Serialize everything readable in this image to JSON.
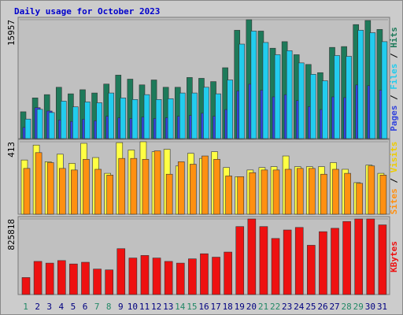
{
  "chart_data": {
    "type": "awstats-daily",
    "title": "Daily usage for October 2023",
    "categories": [
      "1",
      "2",
      "3",
      "4",
      "5",
      "6",
      "7",
      "8",
      "9",
      "10",
      "11",
      "12",
      "13",
      "14",
      "15",
      "16",
      "17",
      "18",
      "19",
      "20",
      "21",
      "22",
      "23",
      "24",
      "25",
      "26",
      "27",
      "28",
      "29",
      "30",
      "31"
    ],
    "weekends": [
      "1",
      "7",
      "8",
      "14",
      "15",
      "21",
      "22",
      "28",
      "29"
    ],
    "weekend_color": "#228866",
    "weekday_color": "#000080",
    "legend_separator": " / ",
    "panels": [
      {
        "ylim": [
          0,
          15957
        ],
        "yticks": [
          15957
        ],
        "series": [
          {
            "name": "Pages",
            "color": "#3344dd",
            "values": [
              1500,
              4150,
              3700,
              2500,
              2300,
              2600,
              2400,
              3000,
              2800,
              2700,
              2900,
              2700,
              2800,
              3000,
              3100,
              3400,
              3000,
              3900,
              6400,
              7300,
              6500,
              5600,
              5900,
              5100,
              4300,
              3900,
              5600,
              5500,
              7200,
              7100,
              6500
            ]
          },
          {
            "name": "Files",
            "color": "#22ccee",
            "values": [
              2620,
              3930,
              3500,
              5030,
              4260,
              4920,
              4810,
              6120,
              5460,
              5250,
              5900,
              5250,
              5360,
              6120,
              6120,
              6890,
              6010,
              7870,
              12680,
              14430,
              12900,
              11260,
              11800,
              10160,
              8630,
              7760,
              11150,
              11040,
              14540,
              14210,
              13010
            ]
          },
          {
            "name": "Hits",
            "color": "#1e7a5a",
            "values": [
              3600,
              5460,
              5900,
              6890,
              6010,
              6560,
              6120,
              7320,
              8520,
              7980,
              7210,
              7870,
              6890,
              6890,
              8200,
              8090,
              7650,
              9510,
              14540,
              15957,
              14430,
              12130,
              13010,
              11260,
              9950,
              8850,
              12240,
              12350,
              15300,
              15850,
              14650
            ]
          }
        ]
      },
      {
        "ylim": [
          0,
          413
        ],
        "yticks": [
          413
        ],
        "series": [
          {
            "name": "Sites",
            "color": "#ff9011",
            "values": [
              261,
              351,
              294,
              261,
              252,
              313,
              256,
              223,
              318,
              318,
              313,
              361,
              228,
              299,
              285,
              332,
              313,
              218,
              214,
              237,
              252,
              252,
              256,
              261,
              261,
              228,
              256,
              233,
              176,
              275,
              223
            ]
          },
          {
            "name": "Visits",
            "color": "#ffff44",
            "values": [
              309,
              394,
              299,
              342,
              290,
              404,
              323,
              233,
              408,
              366,
              413,
              356,
              370,
              275,
              347,
              318,
              356,
              266,
              214,
              252,
              266,
              271,
              332,
              271,
              271,
              271,
              294,
              256,
              180,
              280,
              233
            ]
          }
        ]
      },
      {
        "ylim": [
          0,
          825818
        ],
        "yticks": [
          825818
        ],
        "series": [
          {
            "name": "KBytes",
            "color": "#ee1111",
            "values": [
              185580,
              361880,
              343320,
              371160,
              334040,
              352600,
              278370,
              269090,
              501060,
              398990,
              426830,
              398990,
              361880,
              343320,
              389710,
              445390,
              408270,
              463940,
              742310,
              825818,
              742310,
              612410,
              705190,
              733030,
              538170,
              686620,
              723750,
              797980,
              825818,
              825818,
              760870
            ]
          }
        ]
      }
    ]
  }
}
